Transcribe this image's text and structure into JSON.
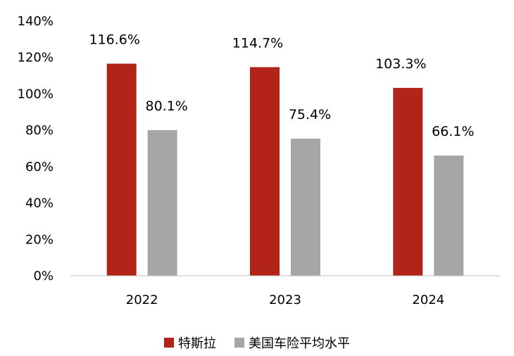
{
  "chart_data": {
    "type": "bar",
    "categories": [
      "2022",
      "2023",
      "2024"
    ],
    "series": [
      {
        "name": "特斯拉",
        "values": [
          116.6,
          114.7,
          103.3
        ],
        "labels": [
          "116.6%",
          "114.7%",
          "103.3%"
        ],
        "color": "#B22418"
      },
      {
        "name": "美国车险平均水平",
        "values": [
          80.1,
          75.4,
          66.1
        ],
        "labels": [
          "80.1%",
          "75.4%",
          "66.1%"
        ],
        "color": "#A6A6A6"
      }
    ],
    "ylim": [
      0,
      140
    ],
    "yticks": [
      0,
      20,
      40,
      60,
      80,
      100,
      120,
      140
    ],
    "ytick_labels": [
      "0%",
      "20%",
      "40%",
      "60%",
      "80%",
      "100%",
      "120%",
      "140%"
    ],
    "grid": false,
    "legend_position": "bottom"
  }
}
